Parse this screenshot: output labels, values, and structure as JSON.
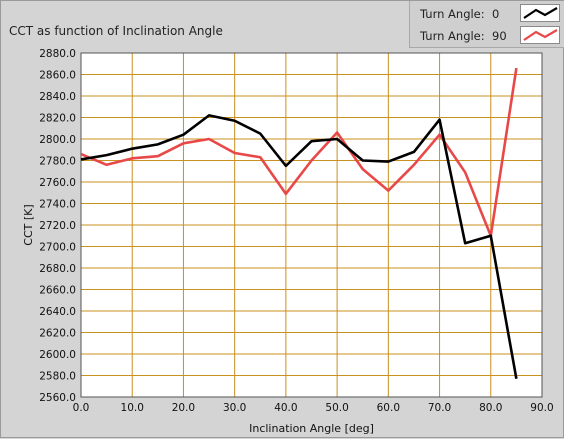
{
  "chart_data": {
    "type": "line",
    "title": "CCT as function of Inclination Angle",
    "xlabel": "Inclination Angle [deg]",
    "ylabel": "CCT [K]",
    "xlim": [
      0.0,
      90.0
    ],
    "ylim": [
      2560.0,
      2880.0
    ],
    "x_ticks": [
      "0.0",
      "10.0",
      "20.0",
      "30.0",
      "40.0",
      "50.0",
      "60.0",
      "70.0",
      "80.0",
      "90.0"
    ],
    "y_ticks": [
      "2560.0",
      "2580.0",
      "2600.0",
      "2620.0",
      "2640.0",
      "2660.0",
      "2680.0",
      "2700.0",
      "2720.0",
      "2740.0",
      "2760.0",
      "2780.0",
      "2800.0",
      "2820.0",
      "2840.0",
      "2860.0",
      "2880.0"
    ],
    "grid": true,
    "legend_position": "top-right",
    "plot_background": "#ffffff",
    "grid_color": "#c8901e",
    "series": [
      {
        "legend_label": "Turn Angle:",
        "legend_value": "0",
        "color": "#000000",
        "x": [
          0,
          5,
          10,
          15,
          20,
          25,
          30,
          35,
          40,
          45,
          50,
          55,
          60,
          65,
          70,
          75,
          80,
          85
        ],
        "y": [
          2781,
          2785,
          2791,
          2795,
          2804,
          2822,
          2817,
          2805,
          2775,
          2798,
          2800,
          2780,
          2779,
          2788,
          2818,
          2703,
          2710,
          2577
        ]
      },
      {
        "legend_label": "Turn Angle:",
        "legend_value": "90",
        "color": "#e84848",
        "x": [
          0,
          5,
          10,
          15,
          20,
          25,
          30,
          35,
          40,
          45,
          50,
          55,
          60,
          65,
          70,
          75,
          80,
          85
        ],
        "y": [
          2786,
          2776,
          2782,
          2784,
          2796,
          2800,
          2787,
          2783,
          2749,
          2780,
          2806,
          2772,
          2752,
          2776,
          2804,
          2769,
          2710,
          2866
        ]
      }
    ]
  }
}
